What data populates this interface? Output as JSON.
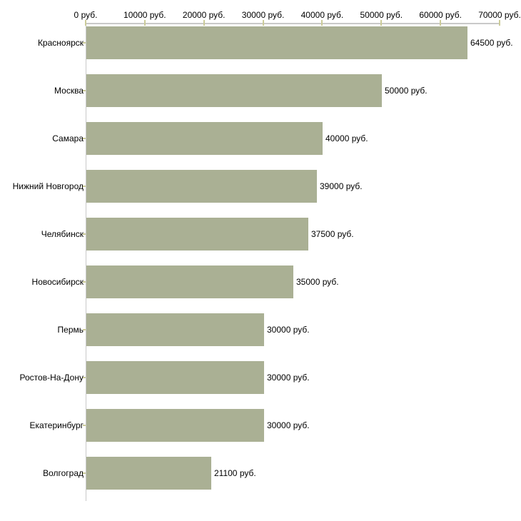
{
  "chart_data": {
    "type": "bar",
    "orientation": "horizontal",
    "title": "",
    "xlabel": "",
    "ylabel": "",
    "unit": "руб.",
    "categories": [
      "Красноярск",
      "Москва",
      "Самара",
      "Нижний Новгород",
      "Челябинск",
      "Новосибирск",
      "Пермь",
      "Ростов-На-Дону",
      "Екатеринбург",
      "Волгоград"
    ],
    "values": [
      64500,
      50000,
      40000,
      39000,
      37500,
      35000,
      30000,
      30000,
      30000,
      21100
    ],
    "value_labels": [
      "64500 руб.",
      "50000 руб.",
      "40000 руб.",
      "39000 руб.",
      "37500 руб.",
      "35000 руб.",
      "30000 руб.",
      "30000 руб.",
      "30000 руб.",
      "21100 руб."
    ],
    "x_ticks": [
      0,
      10000,
      20000,
      30000,
      40000,
      50000,
      60000,
      70000
    ],
    "x_tick_labels": [
      "0 руб.",
      "10000 руб.",
      "20000 руб.",
      "30000 руб.",
      "40000 руб.",
      "50000 руб.",
      "60000 руб.",
      "70000 руб."
    ],
    "xlim": [
      0,
      70000
    ],
    "grid": false,
    "legend": false,
    "axis_position": "top",
    "colors": {
      "bar": "#aab094",
      "axis_line": "#c9c9c9",
      "tick": "#cccc99",
      "text": "#000000",
      "background": "#ffffff"
    }
  }
}
